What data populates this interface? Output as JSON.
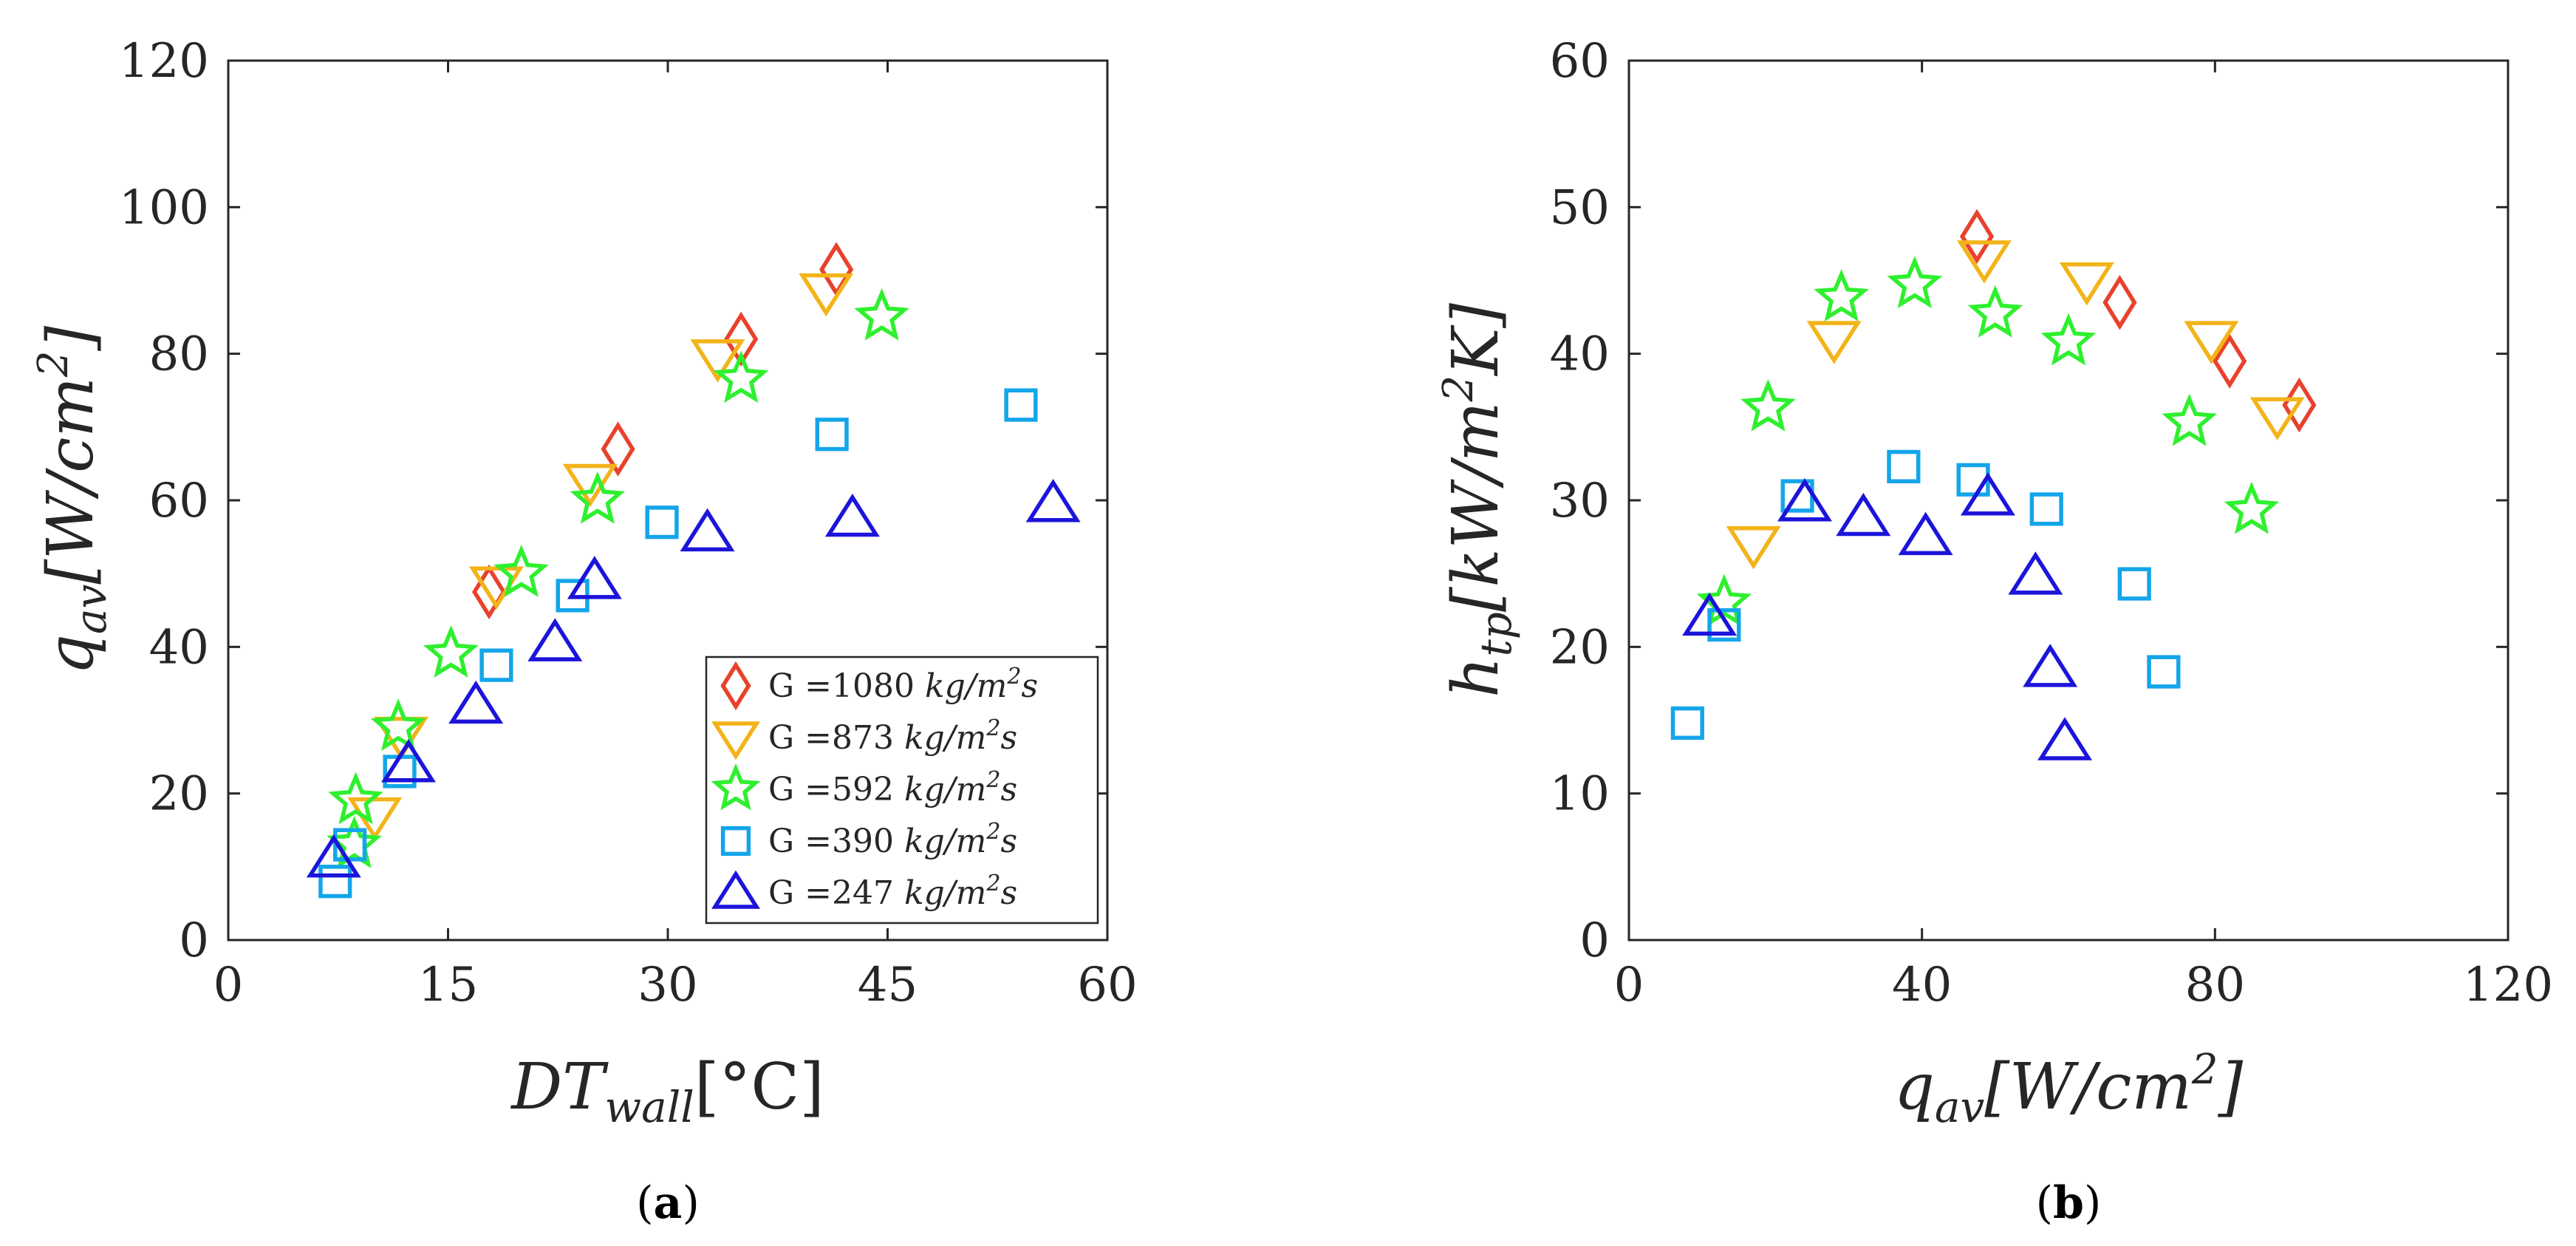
{
  "chart_data": [
    {
      "type": "scatter",
      "caption_letter": "a",
      "xlabel_main": "DT",
      "xlabel_sub": "wall",
      "xlabel_unit": "[°C]",
      "ylabel_main": "q",
      "ylabel_sub": "av",
      "ylabel_unit": "[W/cm",
      "ylabel_sup": "2",
      "ylabel_close": "]",
      "xlim": [
        0,
        60
      ],
      "ylim": [
        0,
        120
      ],
      "xticks": [
        0,
        15,
        30,
        45,
        60
      ],
      "yticks": [
        0,
        20,
        40,
        60,
        80,
        100,
        120
      ],
      "grid": false,
      "legend_position": "bottom-right",
      "legend": [
        {
          "label": "G =1080",
          "unit": " kg/m",
          "sup": "2",
          "unit_end": "s",
          "series": "s1080"
        },
        {
          "label": "G =873",
          "unit": " kg/m",
          "sup": "2",
          "unit_end": "s",
          "series": "s873"
        },
        {
          "label": "G =592",
          "unit": " kg/m",
          "sup": "2",
          "unit_end": "s",
          "series": "s592"
        },
        {
          "label": "G =390",
          "unit": " kg/m",
          "sup": "2",
          "unit_end": "s",
          "series": "s390"
        },
        {
          "label": "G =247",
          "unit": " kg/m",
          "sup": "2",
          "unit_end": "s",
          "series": "s247"
        }
      ],
      "series": [
        {
          "id": "s1080",
          "marker": "diamond",
          "color": "#E8412C",
          "points": [
            [
              17.8,
              47.5
            ],
            [
              26.6,
              67
            ],
            [
              35,
              82
            ],
            [
              41.5,
              91.5
            ]
          ]
        },
        {
          "id": "s873",
          "marker": "triangle-down",
          "color": "#F3B319",
          "points": [
            [
              10,
              17
            ],
            [
              11.8,
              28
            ],
            [
              18.3,
              48.5
            ],
            [
              24.7,
              62.5
            ],
            [
              33.4,
              79.5
            ],
            [
              40.8,
              88.5
            ]
          ]
        },
        {
          "id": "s592",
          "marker": "star",
          "color": "#2EF02E",
          "points": [
            [
              8.6,
              13
            ],
            [
              8.7,
              19
            ],
            [
              11.6,
              29
            ],
            [
              15.2,
              39
            ],
            [
              20,
              50
            ],
            [
              25.2,
              60
            ],
            [
              35,
              76.5
            ],
            [
              44.6,
              85
            ]
          ]
        },
        {
          "id": "s390",
          "marker": "square",
          "color": "#14A5EA",
          "points": [
            [
              7.3,
              8
            ],
            [
              8.3,
              13
            ],
            [
              11.7,
              23
            ],
            [
              18.3,
              37.5
            ],
            [
              23.5,
              47
            ],
            [
              29.6,
              57
            ],
            [
              41.2,
              69
            ],
            [
              54.1,
              73
            ]
          ]
        },
        {
          "id": "s247",
          "marker": "triangle-up",
          "color": "#1C14DA",
          "points": [
            [
              7.2,
              11
            ],
            [
              12.3,
              24
            ],
            [
              16.9,
              32
            ],
            [
              22.3,
              40.5
            ],
            [
              25,
              49
            ],
            [
              32.7,
              55.5
            ],
            [
              42.6,
              57.5
            ],
            [
              56.3,
              59.5
            ]
          ]
        }
      ]
    },
    {
      "type": "scatter",
      "caption_letter": "b",
      "xlabel_main": "q",
      "xlabel_sub": "av",
      "xlabel_unit": "[W/cm",
      "xlabel_sup": "2",
      "xlabel_close": "]",
      "ylabel_main": "h",
      "ylabel_sub": "tp",
      "ylabel_unit": "[kW/m",
      "ylabel_sup": "2",
      "ylabel_close": "K]",
      "xlim": [
        0,
        120
      ],
      "ylim": [
        0,
        60
      ],
      "xticks": [
        0,
        40,
        80,
        120
      ],
      "yticks": [
        0,
        10,
        20,
        30,
        40,
        50,
        60
      ],
      "grid": false,
      "series": [
        {
          "id": "s1080",
          "marker": "diamond",
          "color": "#E8412C",
          "points": [
            [
              47.5,
              48
            ],
            [
              67,
              43.5
            ],
            [
              82,
              39.5
            ],
            [
              91.5,
              36.5
            ]
          ]
        },
        {
          "id": "s873",
          "marker": "triangle-down",
          "color": "#F3B319",
          "points": [
            [
              17,
              27
            ],
            [
              28,
              41
            ],
            [
              48.5,
              46.5
            ],
            [
              62.5,
              45
            ],
            [
              79.5,
              41
            ],
            [
              88.5,
              35.8
            ]
          ]
        },
        {
          "id": "s592",
          "marker": "star",
          "color": "#2EF02E",
          "points": [
            [
              13,
              23
            ],
            [
              19,
              36.3
            ],
            [
              29,
              43.8
            ],
            [
              39,
              44.7
            ],
            [
              50,
              42.7
            ],
            [
              60,
              40.8
            ],
            [
              76.5,
              35.3
            ],
            [
              85,
              29.3
            ]
          ]
        },
        {
          "id": "s390",
          "marker": "square",
          "color": "#14A5EA",
          "points": [
            [
              8,
              14.8
            ],
            [
              13,
              21.5
            ],
            [
              23,
              30.3
            ],
            [
              37.5,
              32.3
            ],
            [
              47,
              31.4
            ],
            [
              57,
              29.4
            ],
            [
              69,
              24.3
            ],
            [
              73,
              18.3
            ]
          ]
        },
        {
          "id": "s247",
          "marker": "triangle-up",
          "color": "#1C14DA",
          "points": [
            [
              11,
              22
            ],
            [
              24,
              29.8
            ],
            [
              32,
              28.8
            ],
            [
              40.5,
              27.5
            ],
            [
              49,
              30.2
            ],
            [
              55.5,
              24.8
            ],
            [
              57.5,
              18.5
            ],
            [
              59.5,
              13.5
            ]
          ]
        }
      ]
    }
  ]
}
